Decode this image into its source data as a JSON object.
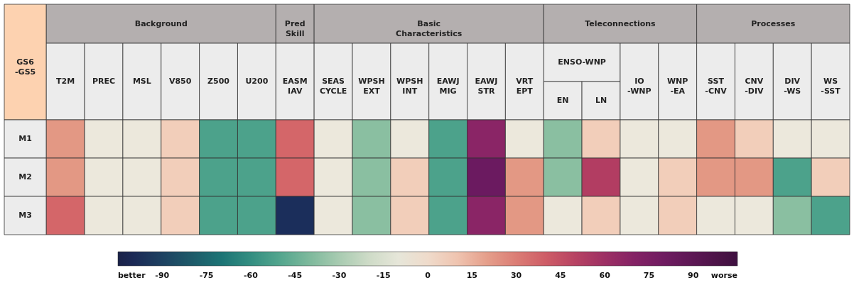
{
  "chart_data": {
    "type": "heatmap",
    "ylabel": "GS6 -GS5",
    "categories": [
      "T2M",
      "PREC",
      "MSL",
      "V850",
      "Z500",
      "U200",
      "EASM IAV",
      "SEAS CYCLE",
      "WPSH EXT",
      "WPSH INT",
      "EAWJ MIG",
      "EAWJ STR",
      "VRT EPT",
      "EN",
      "LN",
      "IO-WNP",
      "WNP-EA",
      "SST-CNV",
      "CNV-DIV",
      "DIV-WS",
      "WS-SST"
    ],
    "y_categories": [
      "M1",
      "M2",
      "M3"
    ],
    "cells": [
      [
        22,
        -7,
        -7,
        7,
        -52,
        -52,
        37,
        -7,
        -37,
        -7,
        -52,
        67,
        -7,
        -37,
        7,
        -7,
        -7,
        22,
        7,
        -7,
        -7
      ],
      [
        22,
        -7,
        -7,
        7,
        -52,
        -52,
        37,
        -7,
        -37,
        7,
        -52,
        82,
        22,
        -37,
        52,
        -7,
        7,
        22,
        22,
        -52,
        7
      ],
      [
        37,
        -7,
        -7,
        7,
        -52,
        -52,
        -97,
        -7,
        -37,
        7,
        -52,
        67,
        22,
        -7,
        7,
        -7,
        7,
        -7,
        -7,
        -37,
        -52
      ]
    ],
    "clim": [
      -105,
      105
    ],
    "cticks": [
      {
        "value": -105,
        "label": "better"
      },
      -90,
      -75,
      -60,
      -45,
      -30,
      -15,
      0,
      15,
      30,
      45,
      60,
      75,
      90,
      {
        "value": 105,
        "label": "worse"
      }
    ],
    "annotations": [
      "Background",
      "Pred Skill",
      "Basic Characteristics",
      "Teleconnections",
      "ENSO-WNP",
      "Processes"
    ]
  }
}
